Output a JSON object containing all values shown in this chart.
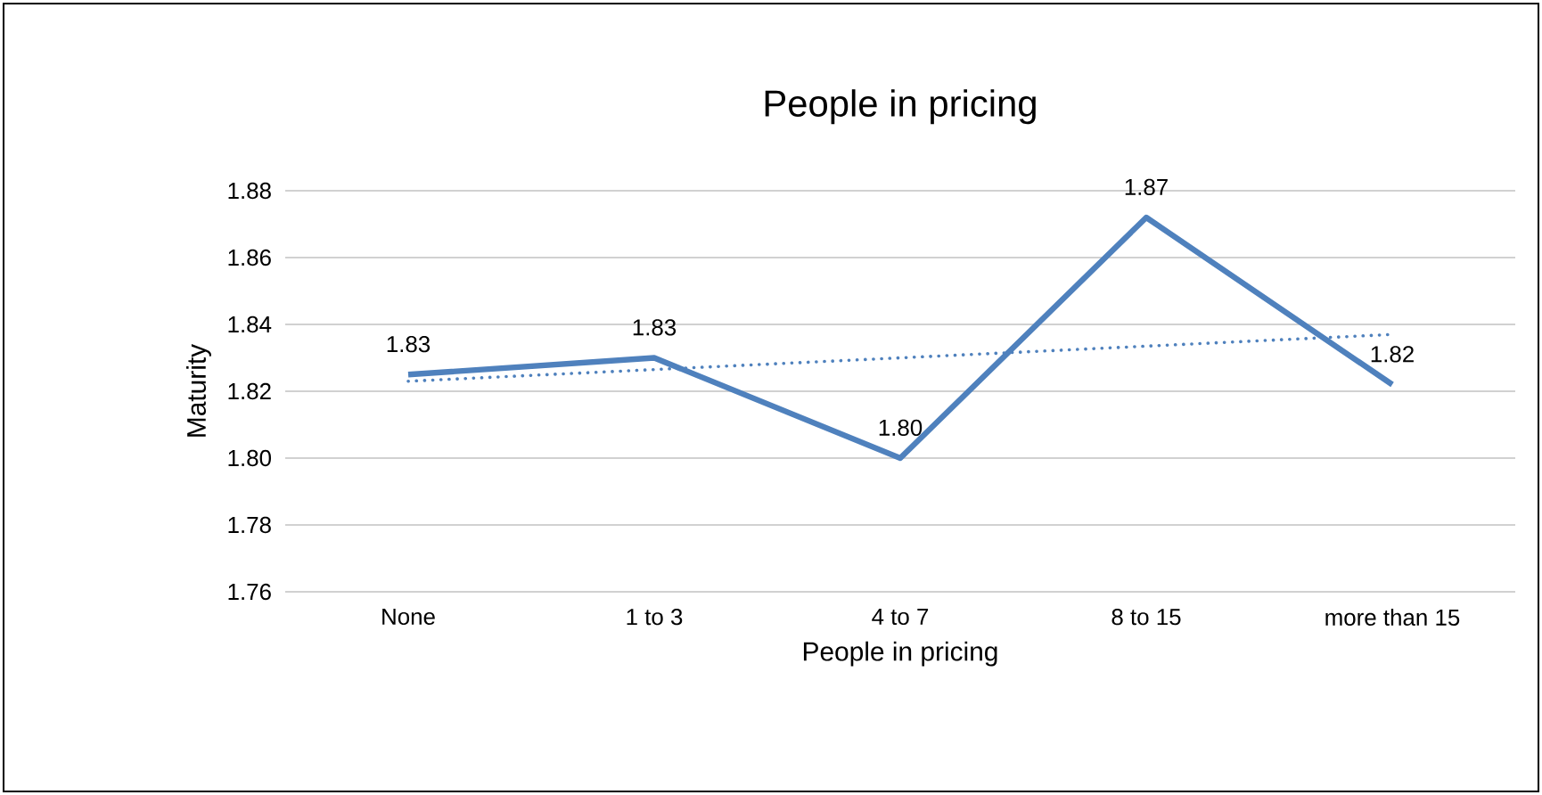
{
  "chart_data": {
    "type": "line",
    "title": "People in pricing",
    "xlabel": "People in pricing",
    "ylabel": "Maturity",
    "categories": [
      "None",
      "1 to 3",
      "4 to 7",
      "8 to 15",
      "more than 15"
    ],
    "series": [
      {
        "color": "#4f81bd",
        "values": [
          1.825,
          1.83,
          1.8,
          1.872,
          1.822
        ],
        "value_labels": [
          "1.83",
          "1.83",
          "1.80",
          "1.87",
          "1.82"
        ],
        "line_style": "solid"
      },
      {
        "type": "line",
        "color": "#4f81bd",
        "values": [
          1.823,
          1.8265,
          1.83,
          1.8335,
          1.837
        ],
        "line_style": "dotted"
      }
    ],
    "ylim": [
      1.76,
      1.88
    ],
    "yticks": [
      1.76,
      1.78,
      {
        "value": 1.8,
        "label": "1.80"
      },
      1.82,
      1.84,
      1.86,
      1.88
    ],
    "grid": "y",
    "marker": "none"
  }
}
